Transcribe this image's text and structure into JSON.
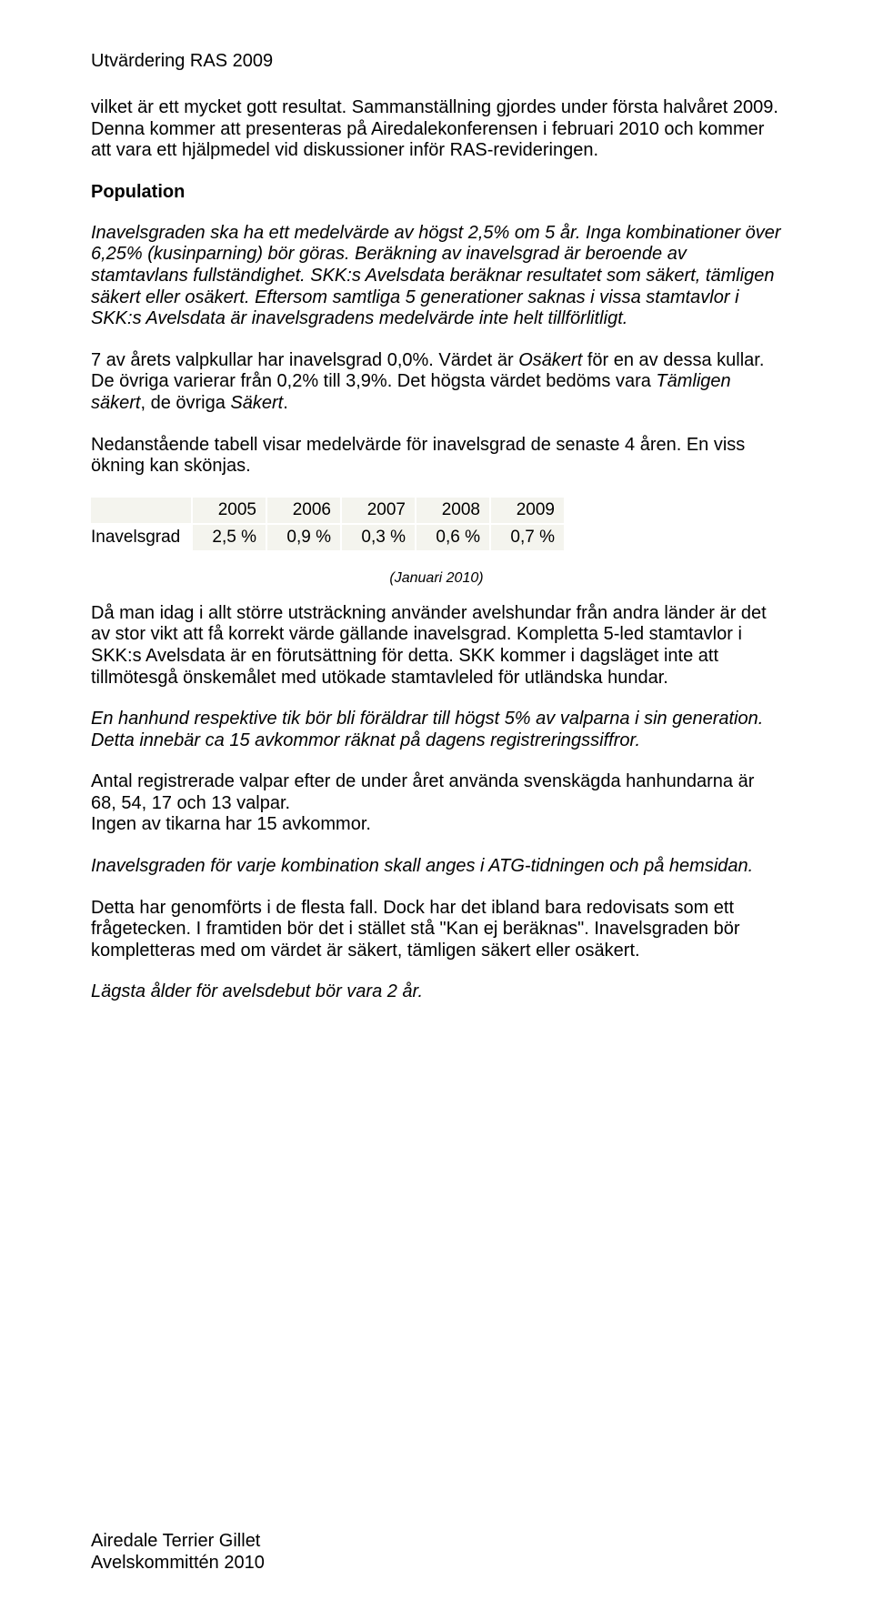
{
  "header": "Utvärdering RAS 2009",
  "para1": "vilket är ett mycket gott resultat. Sammanställning gjordes under första halvåret 2009. Denna kommer att presenteras på Airedalekonferensen  i februari 2010 och  kommer att vara ett hjälpmedel vid diskussioner inför RAS-revideringen.",
  "heading_population": "Population",
  "para2_italic": "Inavelsgraden ska ha ett medelvärde av högst 2,5% om 5 år. Inga kombinationer över 6,25% (kusinparning) bör göras. Beräkning av inavelsgrad är beroende av stamtavlans fullständighet. SKK:s Avelsdata beräknar resultatet som säkert, tämligen säkert eller osäkert. Eftersom samtliga 5 generationer saknas i vissa stamtavlor i SKK:s Avelsdata är inavelsgradens medelvärde inte helt tillförlitligt.",
  "para3_a": "7 av årets valpkullar har inavelsgrad 0,0%. Värdet är ",
  "para3_b_italic": "Osäkert",
  "para3_c": " för en av dessa kullar.",
  "para3_d": "De övriga varierar från 0,2% till 3,9%. Det högsta värdet bedöms vara ",
  "para3_e_italic": "Tämligen säkert",
  "para3_f": ", de övriga ",
  "para3_g_italic": "Säkert",
  "para3_h": ".",
  "para4": "Nedanstående tabell visar medelvärde för inavelsgrad de senaste 4 åren. En viss ökning kan skönjas.",
  "table": {
    "row_label": "Inavelsgrad",
    "years": [
      "2005",
      "2006",
      "2007",
      "2008",
      "2009"
    ],
    "values": [
      "2,5 %",
      "0,9 %",
      "0,3 %",
      "0,6 %",
      "0,7 %"
    ],
    "header_bg": "#f4f4ee",
    "cell_bg": "#f4f4ee",
    "border_color": "#ffffff"
  },
  "caption": "(Januari 2010)",
  "para5": "Då man idag i allt större utsträckning använder avelshundar från andra länder är det av stor vikt att få korrekt värde gällande inavelsgrad. Kompletta 5-led stamtavlor i SKK:s Avelsdata är en förutsättning för detta. SKK kommer i dagsläget inte att tillmötesgå önskemålet med utökade stamtavleled för utländska hundar.",
  "para6_italic": "En hanhund respektive tik bör bli föräldrar till högst 5% av valparna i sin generation. Detta innebär ca 15 avkommor räknat på dagens registreringssiffror.",
  "para7": "Antal registrerade valpar efter de under året använda svenskägda hanhundarna är 68, 54, 17 och 13 valpar.",
  "para7b": "Ingen av tikarna har 15 avkommor.",
  "para8_italic": "Inavelsgraden för varje kombination skall anges i ATG-tidningen och på hemsidan.",
  "para9": "Detta har genomförts i de flesta fall. Dock har det ibland bara redovisats som ett frågetecken. I framtiden bör det i stället stå \"Kan ej beräknas\". Inavelsgraden bör kompletteras med om värdet är säkert, tämligen säkert eller osäkert.",
  "para10_italic": "Lägsta ålder för avelsdebut bör vara 2 år.",
  "footer1": "Airedale Terrier Gillet",
  "footer2": "Avelskommittén 2010"
}
